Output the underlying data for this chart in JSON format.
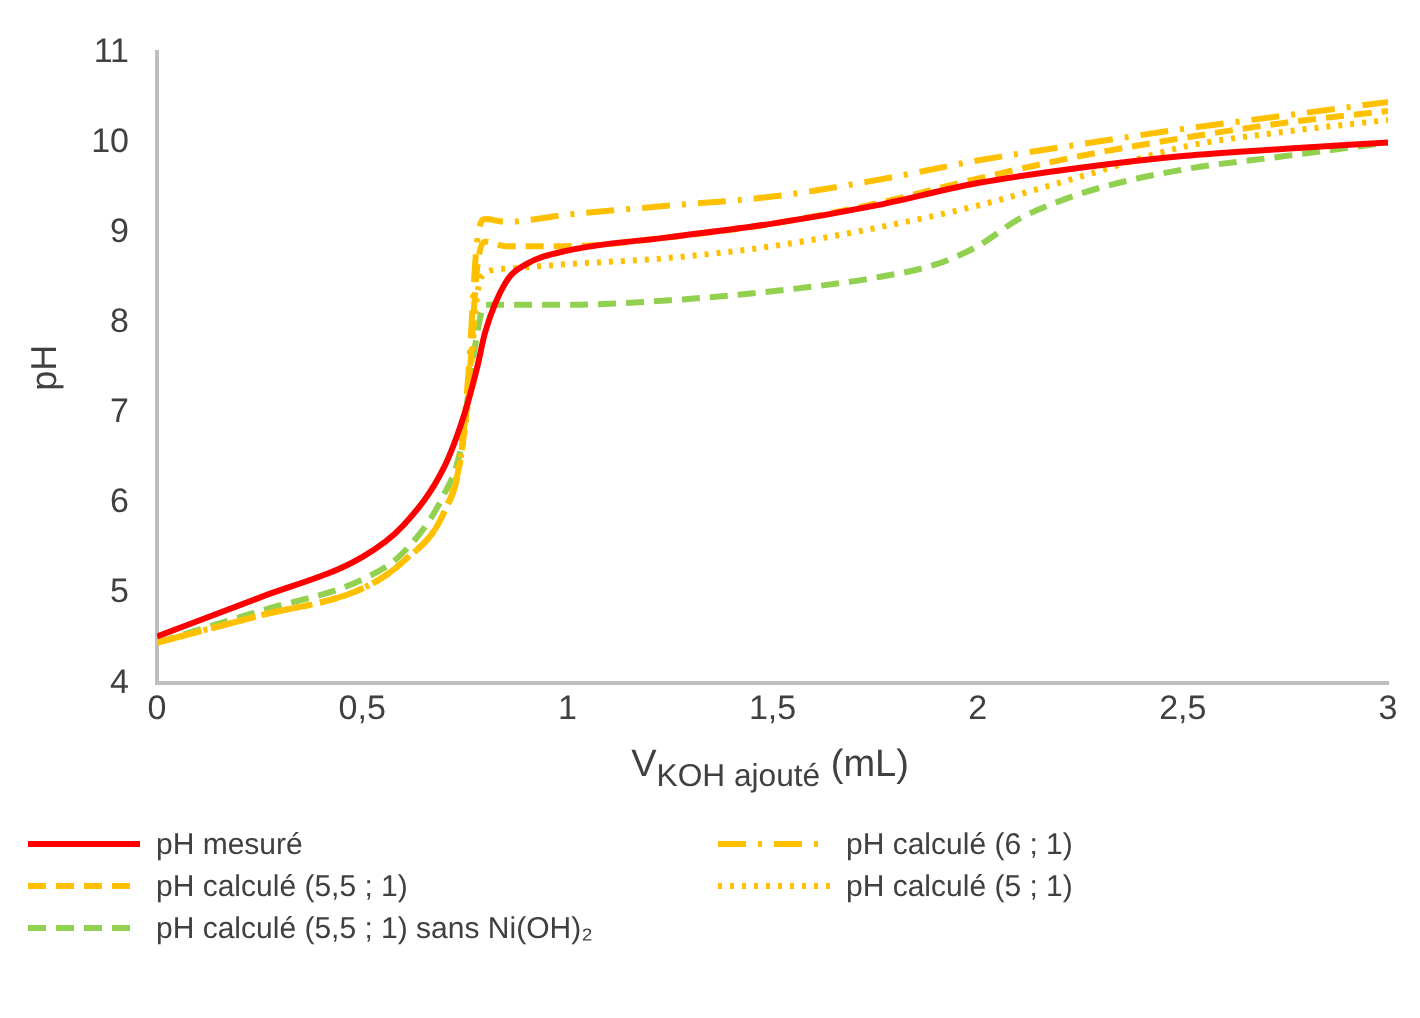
{
  "chart_data": {
    "type": "line",
    "xlabel": "V$_{KOH ajouté}$ (mL)",
    "ylabel": "pH",
    "xlim": [
      0,
      3
    ],
    "ylim": [
      4,
      11
    ],
    "xticks": [
      0,
      {
        "value": 0.5,
        "label": "0,5"
      },
      1,
      {
        "value": 1.5,
        "label": "1,5"
      },
      2,
      {
        "value": 2.5,
        "label": "2,5"
      },
      3
    ],
    "yticks": [
      4,
      5,
      6,
      7,
      8,
      9,
      10,
      11
    ],
    "grid": false,
    "legend": "bottom",
    "marker": "none",
    "series": [
      {
        "name": "pH mesuré",
        "color": "#ff0000",
        "line_style": "solid",
        "x": [
          0,
          0.25,
          0.5,
          0.6,
          0.7,
          0.75,
          0.78,
          0.8,
          0.85,
          0.9,
          1,
          1.25,
          1.5,
          1.75,
          2,
          2.25,
          2.5,
          2.75,
          3
        ],
        "values": [
          4.52,
          4.95,
          5.4,
          5.75,
          6.4,
          7.0,
          7.5,
          7.9,
          8.45,
          8.65,
          8.8,
          8.95,
          9.1,
          9.3,
          9.55,
          9.72,
          9.85,
          9.93,
          10.0
        ]
      },
      {
        "name": "pH calculé (6 ; 1)",
        "color": "#ffc000",
        "line_style": "dashdot",
        "x": [
          0,
          0.25,
          0.5,
          0.6,
          0.7,
          0.74,
          0.76,
          0.78,
          0.8,
          0.85,
          1,
          1.25,
          1.5,
          1.75,
          2,
          2.25,
          2.5,
          2.75,
          3
        ],
        "values": [
          4.45,
          4.75,
          5.05,
          5.35,
          5.9,
          6.5,
          7.5,
          8.9,
          9.15,
          9.12,
          9.2,
          9.3,
          9.4,
          9.58,
          9.8,
          9.98,
          10.15,
          10.3,
          10.45
        ]
      },
      {
        "name": "pH calculé (5,5 ; 1)",
        "color": "#ffc000",
        "line_style": "dashed",
        "x": [
          0,
          0.25,
          0.5,
          0.6,
          0.7,
          0.74,
          0.76,
          0.78,
          0.8,
          0.85,
          1,
          1.25,
          1.5,
          1.75,
          2,
          2.25,
          2.5,
          2.75,
          3
        ],
        "values": [
          4.45,
          4.75,
          5.05,
          5.35,
          5.9,
          6.5,
          7.3,
          8.6,
          8.9,
          8.85,
          8.85,
          8.95,
          9.1,
          9.32,
          9.6,
          9.85,
          10.05,
          10.22,
          10.35
        ]
      },
      {
        "name": "pH calculé (5 ; 1)",
        "color": "#ffc000",
        "line_style": "dotted",
        "x": [
          0,
          0.25,
          0.5,
          0.6,
          0.7,
          0.74,
          0.76,
          0.78,
          0.8,
          0.85,
          1,
          1.25,
          1.5,
          1.75,
          2,
          2.25,
          2.5,
          2.75,
          3
        ],
        "values": [
          4.45,
          4.75,
          5.05,
          5.35,
          5.9,
          6.5,
          7.2,
          8.3,
          8.55,
          8.6,
          8.65,
          8.72,
          8.85,
          9.05,
          9.3,
          9.62,
          9.95,
          10.12,
          10.25
        ]
      },
      {
        "name": "pH calculé (5,5 ; 1) sans Ni(OH)₂",
        "color": "#92d050",
        "line_style": "dashed",
        "x": [
          0,
          0.25,
          0.5,
          0.6,
          0.7,
          0.74,
          0.77,
          0.8,
          0.9,
          1,
          1.25,
          1.5,
          1.75,
          1.9,
          2,
          2.1,
          2.2,
          2.3,
          2.5,
          2.75,
          3
        ],
        "values": [
          4.45,
          4.8,
          5.15,
          5.45,
          6.1,
          6.6,
          7.6,
          8.2,
          8.2,
          8.2,
          8.25,
          8.35,
          8.5,
          8.65,
          8.85,
          9.15,
          9.35,
          9.5,
          9.7,
          9.85,
          10.0
        ]
      }
    ]
  }
}
